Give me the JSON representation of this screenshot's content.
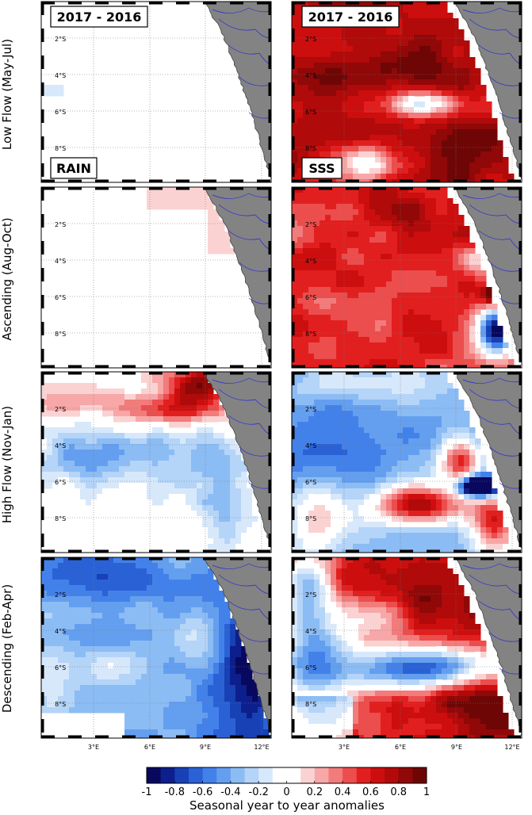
{
  "panels": {
    "rain_title": "2017 - 2016",
    "sss_title": "2017 - 2016",
    "rain_label": "RAIN",
    "sss_label": "SSS"
  },
  "rows": [
    {
      "label": "Low Flow (May-Jul)"
    },
    {
      "label": "Ascending (Aug-Oct)"
    },
    {
      "label": "High Flow (Nov-Jan)"
    },
    {
      "label": "Descending (Feb-Apr)"
    }
  ],
  "axes": {
    "lat_ticks": [
      "2°S",
      "4°S",
      "6°S",
      "8°S"
    ],
    "lon_ticks": [
      "3°E",
      "6°E",
      "9°E",
      "12°E"
    ]
  },
  "colorbar": {
    "tick_labels": [
      "-1",
      "-0.8",
      "-0.6",
      "-0.4",
      "-0.2",
      "0",
      "0.2",
      "0.4",
      "0.6",
      "0.8",
      "1"
    ],
    "label": "Seasonal year to year anomalies",
    "colors": [
      "#08085e",
      "#0d1f8c",
      "#1741b5",
      "#2a62d6",
      "#4381ea",
      "#649fef",
      "#8cbcf4",
      "#b4d4f8",
      "#d8e8fb",
      "#ffffff",
      "#ffffff",
      "#fbd2d2",
      "#f7a7a7",
      "#f27b7b",
      "#ec4d4d",
      "#e21f1f",
      "#cc0e0e",
      "#b00a0a",
      "#900808",
      "#6e0606"
    ]
  },
  "colors": {
    "land": "#838383",
    "coast_rivers": "#2b2bd9",
    "frame": "#000000"
  },
  "map_data": {
    "extent_lon_E": [
      0,
      13
    ],
    "extent_lat_S": [
      0,
      10
    ],
    "field_scale": [
      -1,
      1
    ],
    "panels": [
      {
        "row": 0,
        "variable": "RAIN",
        "pattern": "near_zero_white"
      },
      {
        "row": 0,
        "variable": "SSS",
        "pattern": "strong_positive"
      },
      {
        "row": 1,
        "variable": "RAIN",
        "pattern": "near_zero_slight_positive_coast"
      },
      {
        "row": 1,
        "variable": "SSS",
        "pattern": "positive_with_negative_patch_south_coast"
      },
      {
        "row": 2,
        "variable": "RAIN",
        "pattern": "positive_north_negative_south"
      },
      {
        "row": 2,
        "variable": "SSS",
        "pattern": "negative_offshore_positive_plume"
      },
      {
        "row": 3,
        "variable": "RAIN",
        "pattern": "mostly_negative"
      },
      {
        "row": 3,
        "variable": "SSS",
        "pattern": "positive_with_negative_tongue"
      }
    ]
  }
}
